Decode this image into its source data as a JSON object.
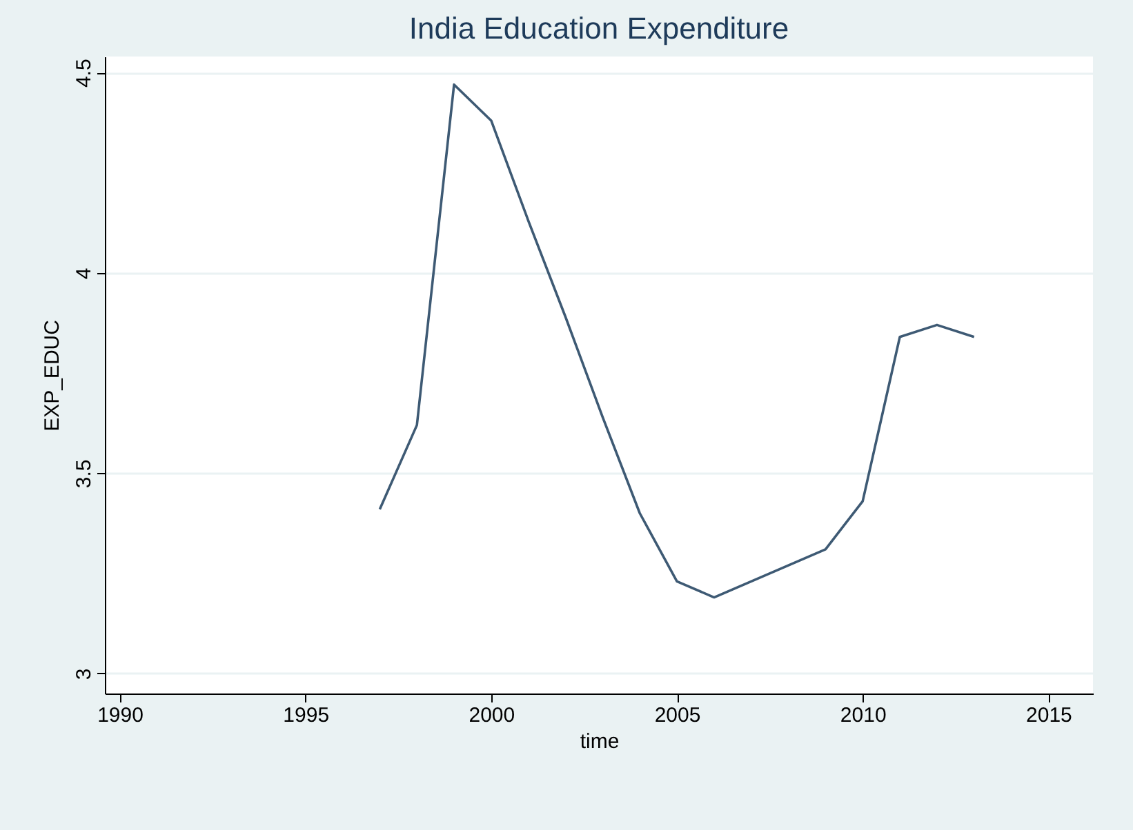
{
  "chart_data": {
    "type": "line",
    "title": "India Education Expenditure",
    "xlabel": "time",
    "ylabel": "EXP_EDUC",
    "x": [
      1997,
      1998,
      1999,
      2000,
      2001,
      2002,
      2003,
      2004,
      2005,
      2006,
      2007,
      2008,
      2009,
      2010,
      2011,
      2012,
      2013
    ],
    "series": [
      {
        "color": "#3e5a74",
        "values": [
          3.41,
          3.62,
          4.47,
          4.38,
          4.13,
          3.89,
          3.64,
          3.4,
          3.23,
          3.19,
          3.23,
          3.27,
          3.31,
          3.43,
          3.84,
          3.87,
          3.84
        ]
      }
    ],
    "xlim": [
      1989.6,
      2016.2
    ],
    "xticks": [
      1990,
      1995,
      2000,
      2005,
      2010,
      2015
    ],
    "ylim": [
      2.95,
      4.54
    ],
    "yticks": [
      3,
      3.5,
      4,
      4.5
    ],
    "grid": "y",
    "legend": false,
    "marker": "none",
    "line_style": "solid"
  }
}
